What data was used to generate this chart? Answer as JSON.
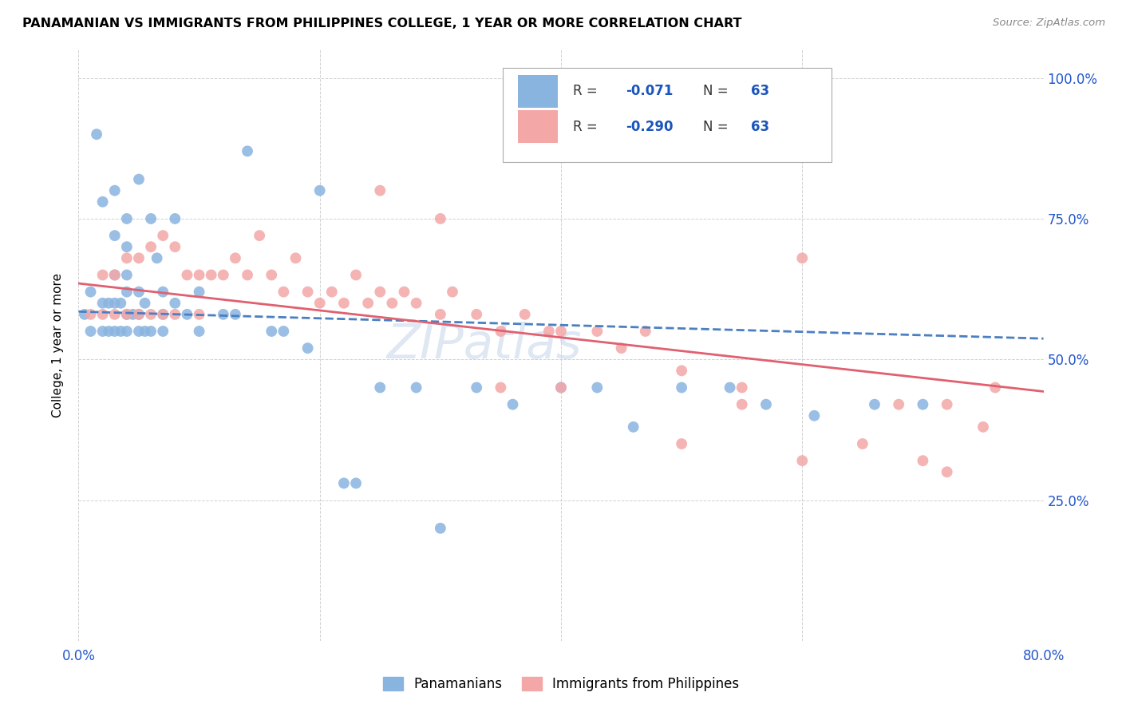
{
  "title": "PANAMANIAN VS IMMIGRANTS FROM PHILIPPINES COLLEGE, 1 YEAR OR MORE CORRELATION CHART",
  "source": "Source: ZipAtlas.com",
  "ylabel": "College, 1 year or more",
  "xlim": [
    0.0,
    0.8
  ],
  "ylim": [
    0.0,
    1.05
  ],
  "legend_label1": "Panamanians",
  "legend_label2": "Immigrants from Philippines",
  "color_blue": "#8ab4e0",
  "color_pink": "#f4a7a7",
  "color_blue_line": "#4a7fc1",
  "color_pink_line": "#e06070",
  "color_legend_text_blue": "#1a55bb",
  "watermark": "ZIPatlas",
  "pan_x": [
    0.005,
    0.01,
    0.01,
    0.015,
    0.02,
    0.02,
    0.02,
    0.025,
    0.025,
    0.03,
    0.03,
    0.03,
    0.03,
    0.03,
    0.035,
    0.035,
    0.04,
    0.04,
    0.04,
    0.04,
    0.04,
    0.04,
    0.045,
    0.05,
    0.05,
    0.05,
    0.05,
    0.055,
    0.055,
    0.06,
    0.06,
    0.065,
    0.07,
    0.07,
    0.07,
    0.08,
    0.08,
    0.09,
    0.1,
    0.1,
    0.12,
    0.13,
    0.14,
    0.16,
    0.17,
    0.19,
    0.2,
    0.22,
    0.23,
    0.25,
    0.28,
    0.3,
    0.33,
    0.36,
    0.4,
    0.43,
    0.46,
    0.5,
    0.54,
    0.57,
    0.61,
    0.66,
    0.7
  ],
  "pan_y": [
    0.58,
    0.55,
    0.62,
    0.9,
    0.55,
    0.6,
    0.78,
    0.55,
    0.6,
    0.55,
    0.6,
    0.65,
    0.72,
    0.8,
    0.55,
    0.6,
    0.55,
    0.58,
    0.62,
    0.65,
    0.7,
    0.75,
    0.58,
    0.55,
    0.58,
    0.62,
    0.82,
    0.55,
    0.6,
    0.55,
    0.75,
    0.68,
    0.55,
    0.58,
    0.62,
    0.6,
    0.75,
    0.58,
    0.55,
    0.62,
    0.58,
    0.58,
    0.87,
    0.55,
    0.55,
    0.52,
    0.8,
    0.28,
    0.28,
    0.45,
    0.45,
    0.2,
    0.45,
    0.42,
    0.45,
    0.45,
    0.38,
    0.45,
    0.45,
    0.42,
    0.4,
    0.42,
    0.42
  ],
  "phi_x": [
    0.01,
    0.02,
    0.02,
    0.03,
    0.03,
    0.04,
    0.04,
    0.05,
    0.05,
    0.06,
    0.06,
    0.07,
    0.07,
    0.08,
    0.08,
    0.09,
    0.1,
    0.1,
    0.11,
    0.12,
    0.13,
    0.14,
    0.15,
    0.16,
    0.17,
    0.18,
    0.19,
    0.2,
    0.21,
    0.22,
    0.23,
    0.24,
    0.25,
    0.26,
    0.27,
    0.28,
    0.3,
    0.31,
    0.33,
    0.35,
    0.37,
    0.39,
    0.4,
    0.43,
    0.45,
    0.47,
    0.5,
    0.55,
    0.6,
    0.65,
    0.68,
    0.72,
    0.75,
    0.25,
    0.3,
    0.35,
    0.4,
    0.5,
    0.55,
    0.6,
    0.7,
    0.72,
    0.76
  ],
  "phi_y": [
    0.58,
    0.58,
    0.65,
    0.58,
    0.65,
    0.58,
    0.68,
    0.58,
    0.68,
    0.58,
    0.7,
    0.58,
    0.72,
    0.58,
    0.7,
    0.65,
    0.58,
    0.65,
    0.65,
    0.65,
    0.68,
    0.65,
    0.72,
    0.65,
    0.62,
    0.68,
    0.62,
    0.6,
    0.62,
    0.6,
    0.65,
    0.6,
    0.62,
    0.6,
    0.62,
    0.6,
    0.58,
    0.62,
    0.58,
    0.55,
    0.58,
    0.55,
    0.55,
    0.55,
    0.52,
    0.55,
    0.48,
    0.42,
    0.32,
    0.35,
    0.42,
    0.3,
    0.38,
    0.8,
    0.75,
    0.45,
    0.45,
    0.35,
    0.45,
    0.68,
    0.32,
    0.42,
    0.45
  ]
}
